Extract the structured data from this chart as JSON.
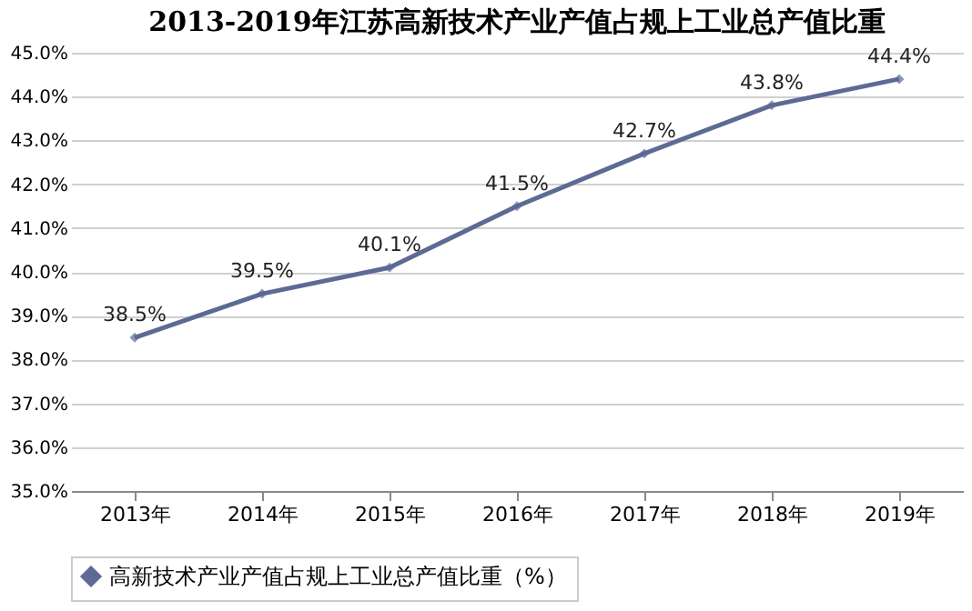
{
  "chart_data": {
    "type": "line",
    "title": "2013-2019年江苏高新技术产业产值占规上工业总产值比重",
    "categories": [
      "2013年",
      "2014年",
      "2015年",
      "2016年",
      "2017年",
      "2018年",
      "2019年"
    ],
    "series": [
      {
        "name": "高新技术产业产值占规上工业总产值比重（%）",
        "color": "#5d6a94",
        "values": [
          38.5,
          39.5,
          40.1,
          41.5,
          42.7,
          43.8,
          44.4
        ],
        "value_labels": [
          "38.5%",
          "39.5%",
          "40.1%",
          "41.5%",
          "42.7%",
          "43.8%",
          "44.4%"
        ]
      }
    ],
    "ylim": [
      35,
      45
    ],
    "yticks": [
      {
        "value": 35,
        "label": "35.0%"
      },
      {
        "value": 36,
        "label": "36.0%"
      },
      {
        "value": 37,
        "label": "37.0%"
      },
      {
        "value": 38,
        "label": "38.0%"
      },
      {
        "value": 39,
        "label": "39.0%"
      },
      {
        "value": 40,
        "label": "40.0%"
      },
      {
        "value": 41,
        "label": "41.0%"
      },
      {
        "value": 42,
        "label": "42.0%"
      },
      {
        "value": 43,
        "label": "43.0%"
      },
      {
        "value": 44,
        "label": "44.0%"
      },
      {
        "value": 45,
        "label": "45.0%"
      }
    ],
    "grid": "y",
    "legend": "bottom",
    "marker": "diamond",
    "line_style": "solid"
  }
}
